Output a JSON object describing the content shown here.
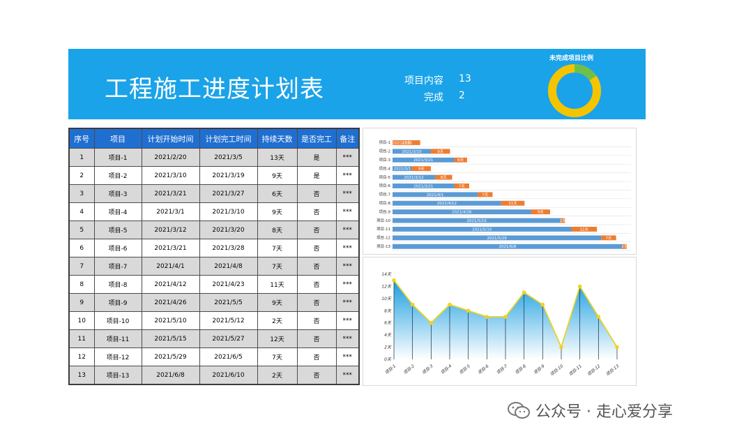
{
  "banner": {
    "title": "工程施工进度计划表",
    "stats": [
      {
        "label": "项目内容",
        "value": "13"
      },
      {
        "label": "完成",
        "value": "2"
      }
    ],
    "donut_title": "未完成项目比例",
    "donut": {
      "incomplete": 11,
      "complete": 2,
      "incomplete_color": "#f5c400",
      "complete_color": "#6fbf4a"
    }
  },
  "table": {
    "headers": [
      "序号",
      "项目",
      "计划开始时间",
      "计划完工时间",
      "持续天数",
      "是否完工",
      "备注"
    ],
    "rows": [
      [
        "1",
        "项目-1",
        "2021/2/20",
        "2021/3/5",
        "13天",
        "是",
        "***"
      ],
      [
        "2",
        "项目-2",
        "2021/3/10",
        "2021/3/19",
        "9天",
        "是",
        "***"
      ],
      [
        "3",
        "项目-3",
        "2021/3/21",
        "2021/3/27",
        "6天",
        "否",
        "***"
      ],
      [
        "4",
        "项目-4",
        "2021/3/1",
        "2021/3/10",
        "9天",
        "否",
        "***"
      ],
      [
        "5",
        "项目-5",
        "2021/3/12",
        "2021/3/20",
        "8天",
        "否",
        "***"
      ],
      [
        "6",
        "项目-6",
        "2021/3/21",
        "2021/3/28",
        "7天",
        "否",
        "***"
      ],
      [
        "7",
        "项目-7",
        "2021/4/1",
        "2021/4/8",
        "7天",
        "否",
        "***"
      ],
      [
        "8",
        "项目-8",
        "2021/4/12",
        "2021/4/23",
        "11天",
        "否",
        "***"
      ],
      [
        "9",
        "项目-9",
        "2021/4/26",
        "2021/5/5",
        "9天",
        "否",
        "***"
      ],
      [
        "10",
        "项目-10",
        "2021/5/10",
        "2021/5/12",
        "2天",
        "否",
        "***"
      ],
      [
        "11",
        "项目-11",
        "2021/5/15",
        "2021/5/27",
        "12天",
        "否",
        "***"
      ],
      [
        "12",
        "项目-12",
        "2021/5/29",
        "2021/6/5",
        "7天",
        "否",
        "***"
      ],
      [
        "13",
        "项目-13",
        "2021/6/8",
        "2021/6/10",
        "2天",
        "否",
        "***"
      ]
    ]
  },
  "chart_data": [
    {
      "type": "bar",
      "subtype": "stacked-horizontal-gantt",
      "categories": [
        "项目-1",
        "项目-2",
        "项目-3",
        "项目-4",
        "项目-5",
        "项目-6",
        "项目-7",
        "项目-8",
        "项目-9",
        "项目-10",
        "项目-11",
        "项目-12",
        "项目-13"
      ],
      "series": [
        {
          "values": [
            "2021/2/20",
            "2021/3/10",
            "2021/3/21",
            "2021/3/1",
            "2021/3/12",
            "2021/3/21",
            "2021/4/1",
            "2021/4/12",
            "2021/4/26",
            "2021/5/10",
            "2021/5/15",
            "2021/5/29",
            "2021/6/8"
          ],
          "color": "#5b9bd5"
        },
        {
          "values": [
            13,
            9,
            6,
            9,
            8,
            7,
            7,
            11,
            9,
            2,
            12,
            7,
            2
          ],
          "labels": [
            "13天",
            "9天",
            "6天",
            "9天",
            "8天",
            "7天",
            "7天",
            "11天",
            "9天",
            "2天",
            "12天",
            "7天",
            "2天"
          ],
          "color": "#ed7d31"
        }
      ],
      "xlim": [
        "2021/2/20",
        "2021/6/12"
      ],
      "grid": true
    },
    {
      "type": "area",
      "categories": [
        "项目-1",
        "项目-2",
        "项目-3",
        "项目-4",
        "项目-5",
        "项目-6",
        "项目-7",
        "项目-8",
        "项目-9",
        "项目-10",
        "项目-11",
        "项目-12",
        "项目-13"
      ],
      "values": [
        13,
        9,
        6,
        9,
        8,
        7,
        7,
        11,
        9,
        2,
        12,
        7,
        2
      ],
      "yticks": [
        "0天",
        "2天",
        "4天",
        "6天",
        "8天",
        "10天",
        "12天",
        "14天"
      ],
      "ylim": [
        0,
        14
      ],
      "line_color": "#e6d22a",
      "fill_color": "#1a9ee0",
      "marker_color": "#f2d21e"
    }
  ],
  "watermark": {
    "text": "公众号 · 走心爱分享"
  }
}
